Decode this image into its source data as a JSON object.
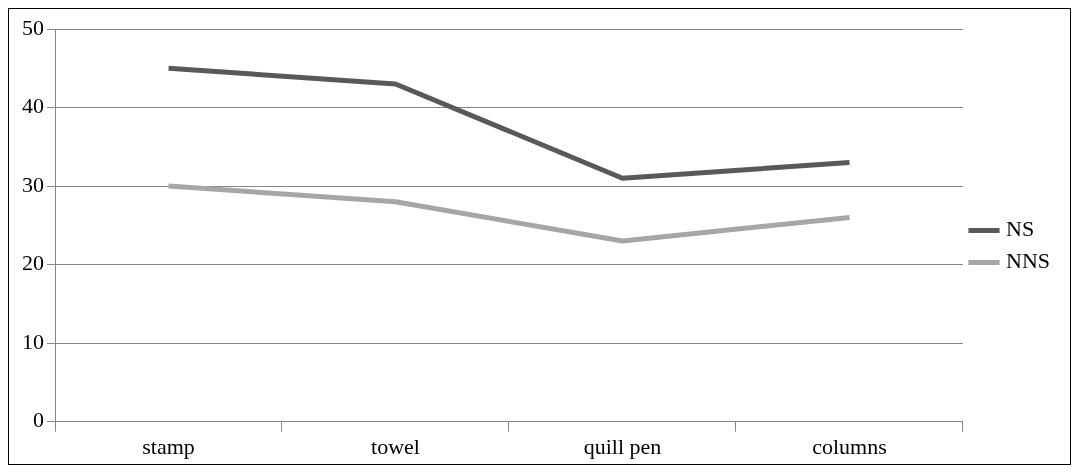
{
  "chart_data": {
    "type": "line",
    "categories": [
      "stamp",
      "towel",
      "quill pen",
      "columns"
    ],
    "series": [
      {
        "name": "NS",
        "color": "#595959",
        "values": [
          45,
          43,
          31,
          33
        ]
      },
      {
        "name": "NNS",
        "color": "#a6a6a6",
        "values": [
          30,
          28,
          23,
          26
        ]
      }
    ],
    "ylim": [
      0,
      50
    ],
    "yticks": [
      0,
      10,
      20,
      30,
      40,
      50
    ],
    "grid": "y",
    "legend": "right",
    "marker": "none",
    "line_style": "solid"
  }
}
